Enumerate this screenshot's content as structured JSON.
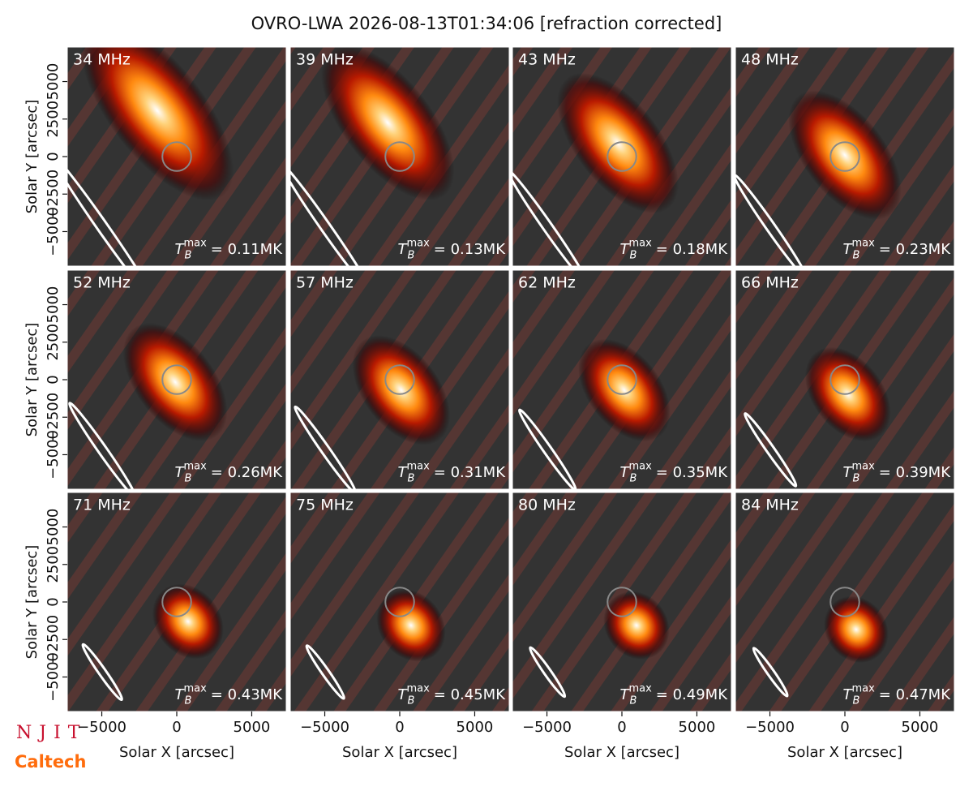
{
  "title": "OVRO-LWA 2026-08-13T01:34:06 [refraction corrected]",
  "logos": {
    "top": "NJIT",
    "bottom": "Caltech"
  },
  "axes": {
    "xlabel": "Solar X [arcsec]",
    "ylabel": "Solar Y [arcsec]",
    "xlim": [
      -7300,
      7300
    ],
    "ylim": [
      -7300,
      7300
    ],
    "xticks": [
      {
        "value": -5000,
        "label": "−5000"
      },
      0,
      5000
    ],
    "yticks": [
      {
        "value": -5000,
        "label": "−5000"
      },
      {
        "value": -2500,
        "label": "−2500"
      },
      0,
      2500,
      5000
    ],
    "disk_radius": 960
  },
  "chart_data": [
    {
      "type": "image",
      "label": "34 MHz",
      "source": {
        "x": -1300,
        "y": 3060
      },
      "beam": {
        "major": 12000,
        "minor": 700
      },
      "tb": {
        "symbol": "T",
        "subscript": "B",
        "superscript": "max",
        "text": "= 0.11MK"
      }
    },
    {
      "type": "image",
      "label": "39 MHz",
      "source": {
        "x": -800,
        "y": 2260
      },
      "beam": {
        "major": 10300,
        "minor": 650
      },
      "tb": {
        "symbol": "T",
        "subscript": "B",
        "superscript": "max",
        "text": "= 0.13MK"
      }
    },
    {
      "type": "image",
      "label": "43 MHz",
      "source": {
        "x": -270,
        "y": 900
      },
      "beam": {
        "major": 9200,
        "minor": 620
      },
      "tb": {
        "symbol": "T",
        "subscript": "B",
        "superscript": "max",
        "text": "= 0.18MK"
      }
    },
    {
      "type": "image",
      "label": "48 MHz",
      "source": {
        "x": 0,
        "y": 100
      },
      "beam": {
        "major": 8400,
        "minor": 600
      },
      "tb": {
        "symbol": "T",
        "subscript": "B",
        "superscript": "max",
        "text": "= 0.23MK"
      }
    },
    {
      "type": "image",
      "label": "52 MHz",
      "source": {
        "x": -100,
        "y": -160
      },
      "beam": {
        "major": 7600,
        "minor": 580
      },
      "tb": {
        "symbol": "T",
        "subscript": "B",
        "superscript": "max",
        "text": "= 0.26MK"
      }
    },
    {
      "type": "image",
      "label": "57 MHz",
      "source": {
        "x": 100,
        "y": -700
      },
      "beam": {
        "major": 7000,
        "minor": 560
      },
      "tb": {
        "symbol": "T",
        "subscript": "B",
        "superscript": "max",
        "text": "= 0.31MK"
      }
    },
    {
      "type": "image",
      "label": "62 MHz",
      "source": {
        "x": 160,
        "y": -700
      },
      "beam": {
        "major": 6500,
        "minor": 540
      },
      "tb": {
        "symbol": "T",
        "subscript": "B",
        "superscript": "max",
        "text": "= 0.35MK"
      }
    },
    {
      "type": "image",
      "label": "66 MHz",
      "source": {
        "x": 200,
        "y": -970
      },
      "beam": {
        "major": 5900,
        "minor": 520
      },
      "tb": {
        "symbol": "T",
        "subscript": "B",
        "superscript": "max",
        "text": "= 0.39MK"
      }
    },
    {
      "type": "image",
      "label": "71 MHz",
      "source": {
        "x": 750,
        "y": -1300
      },
      "beam": {
        "major": 4500,
        "minor": 480
      },
      "tb": {
        "symbol": "T",
        "subscript": "B",
        "superscript": "max",
        "text": "= 0.43MK"
      }
    },
    {
      "type": "image",
      "label": "75 MHz",
      "source": {
        "x": 750,
        "y": -1560
      },
      "beam": {
        "major": 4300,
        "minor": 470
      },
      "tb": {
        "symbol": "T",
        "subscript": "B",
        "superscript": "max",
        "text": "= 0.45MK"
      }
    },
    {
      "type": "image",
      "label": "80 MHz",
      "source": {
        "x": 970,
        "y": -1560
      },
      "beam": {
        "major": 4000,
        "minor": 460
      },
      "tb": {
        "symbol": "T",
        "subscript": "B",
        "superscript": "max",
        "text": "= 0.49MK"
      }
    },
    {
      "type": "image",
      "label": "84 MHz",
      "source": {
        "x": 750,
        "y": -1830
      },
      "beam": {
        "major": 3900,
        "minor": 450
      },
      "tb": {
        "symbol": "T",
        "subscript": "B",
        "superscript": "max",
        "text": "= 0.47MK"
      }
    }
  ]
}
